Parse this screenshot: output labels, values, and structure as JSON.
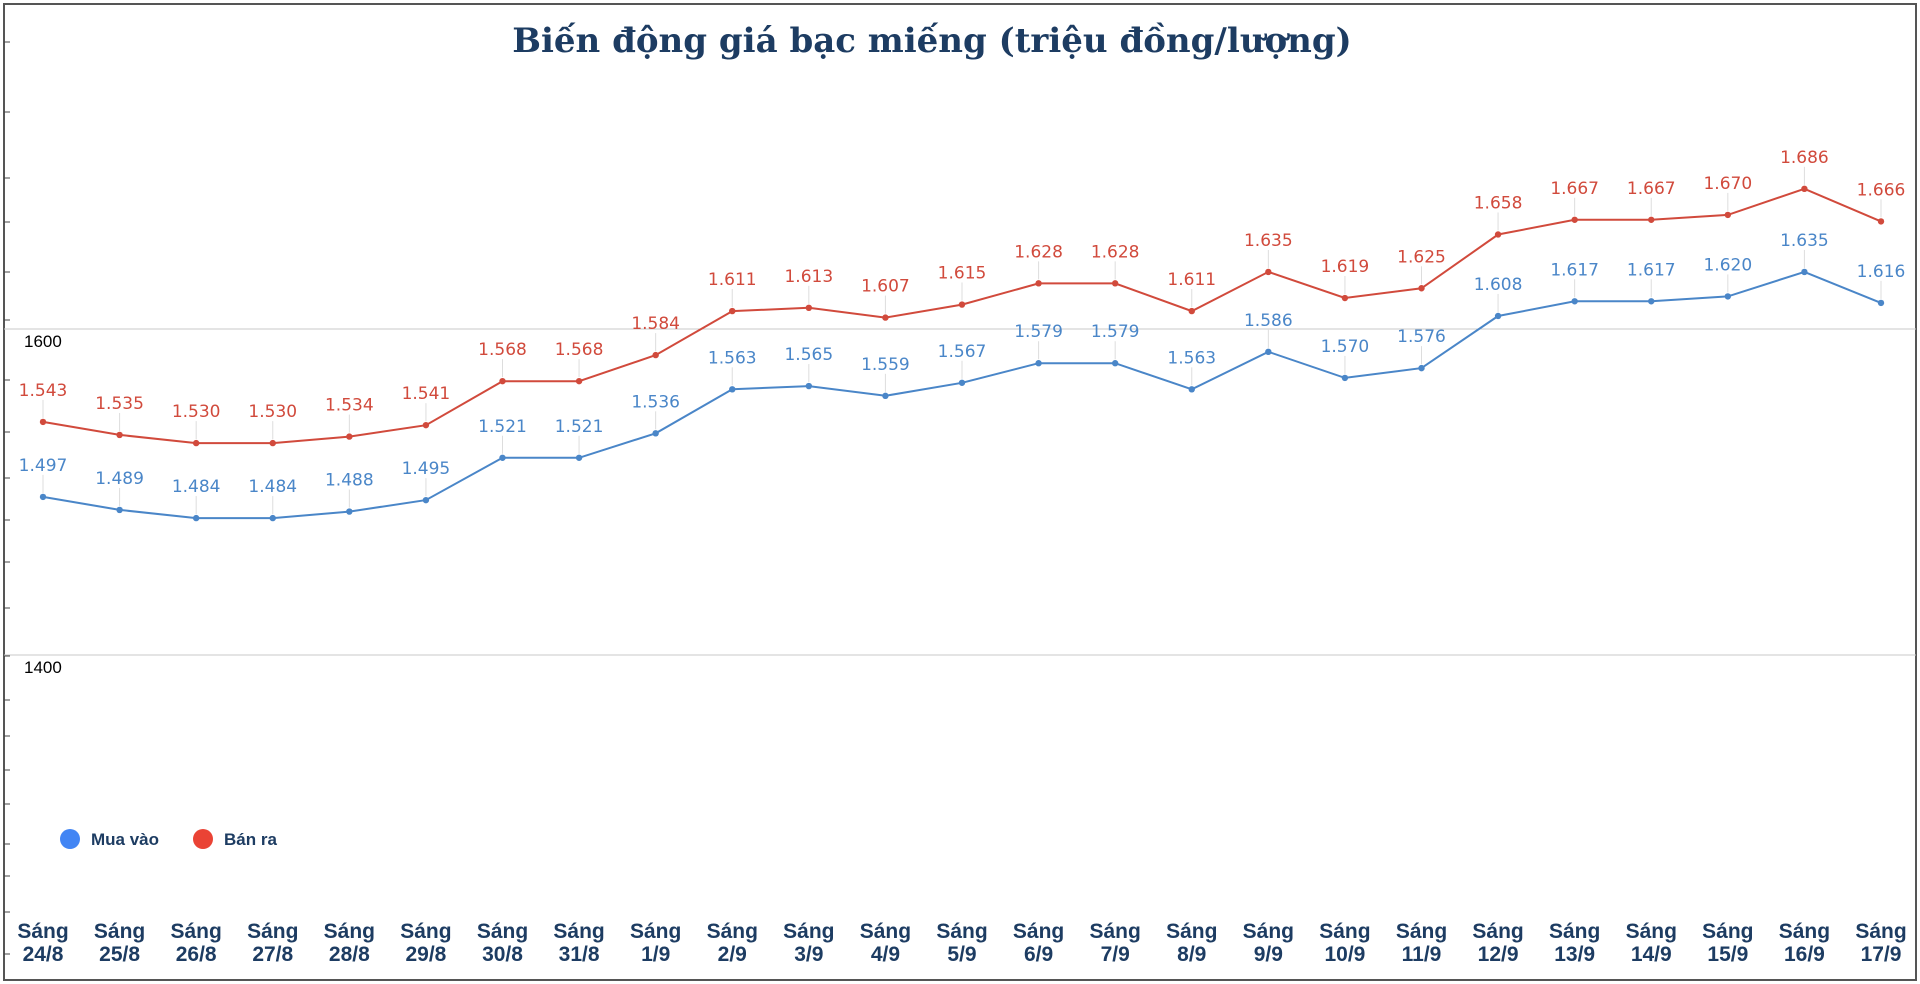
{
  "chart_data": {
    "type": "line",
    "title": "Biến động giá bạc miếng (triệu đồng/lượng)",
    "xlabel": "",
    "ylabel": "",
    "y_ticks": [
      "1600",
      "1400"
    ],
    "ylim": [
      1200,
      1800
    ],
    "grid": true,
    "legend_position": "bottom-left",
    "categories": [
      [
        "Sáng",
        "24/8"
      ],
      [
        "Sáng",
        "25/8"
      ],
      [
        "Sáng",
        "26/8"
      ],
      [
        "Sáng",
        "27/8"
      ],
      [
        "Sáng",
        "28/8"
      ],
      [
        "Sáng",
        "29/8"
      ],
      [
        "Sáng",
        "30/8"
      ],
      [
        "Sáng",
        "31/8"
      ],
      [
        "Sáng",
        "1/9"
      ],
      [
        "Sáng",
        "2/9"
      ],
      [
        "Sáng",
        "3/9"
      ],
      [
        "Sáng",
        "4/9"
      ],
      [
        "Sáng",
        "5/9"
      ],
      [
        "Sáng",
        "6/9"
      ],
      [
        "Sáng",
        "7/9"
      ],
      [
        "Sáng",
        "8/9"
      ],
      [
        "Sáng",
        "9/9"
      ],
      [
        "Sáng",
        "10/9"
      ],
      [
        "Sáng",
        "11/9"
      ],
      [
        "Sáng",
        "12/9"
      ],
      [
        "Sáng",
        "13/9"
      ],
      [
        "Sáng",
        "14/9"
      ],
      [
        "Sáng",
        "15/9"
      ],
      [
        "Sáng",
        "16/9"
      ],
      [
        "Sáng",
        "17/9"
      ]
    ],
    "series": [
      {
        "name": "Mua vào",
        "color": "#4a86c8",
        "values": [
          1497,
          1489,
          1484,
          1484,
          1488,
          1495,
          1521,
          1521,
          1536,
          1563,
          1565,
          1559,
          1567,
          1579,
          1579,
          1563,
          1586,
          1570,
          1576,
          1608,
          1617,
          1617,
          1620,
          1635,
          1616
        ],
        "labels": [
          "1.497",
          "1.489",
          "1.484",
          "1.484",
          "1.488",
          "1.495",
          "1.521",
          "1.521",
          "1.536",
          "1.563",
          "1.565",
          "1.559",
          "1.567",
          "1.579",
          "1.579",
          "1.563",
          "1.586",
          "1.570",
          "1.576",
          "1.608",
          "1.617",
          "1.617",
          "1.620",
          "1.635",
          "1.616"
        ]
      },
      {
        "name": "Bán ra",
        "color": "#d14a3c",
        "values": [
          1543,
          1535,
          1530,
          1530,
          1534,
          1541,
          1568,
          1568,
          1584,
          1611,
          1613,
          1607,
          1615,
          1628,
          1628,
          1611,
          1635,
          1619,
          1625,
          1658,
          1667,
          1667,
          1670,
          1686,
          1666
        ],
        "labels": [
          "1.543",
          "1.535",
          "1.530",
          "1.530",
          "1.534",
          "1.541",
          "1.568",
          "1.568",
          "1.584",
          "1.611",
          "1.613",
          "1.607",
          "1.615",
          "1.628",
          "1.628",
          "1.611",
          "1.635",
          "1.619",
          "1.625",
          "1.658",
          "1.667",
          "1.667",
          "1.670",
          "1.686",
          "1.666"
        ]
      }
    ],
    "legend_marker_colors": [
      "#4285f4",
      "#ea4335"
    ]
  }
}
